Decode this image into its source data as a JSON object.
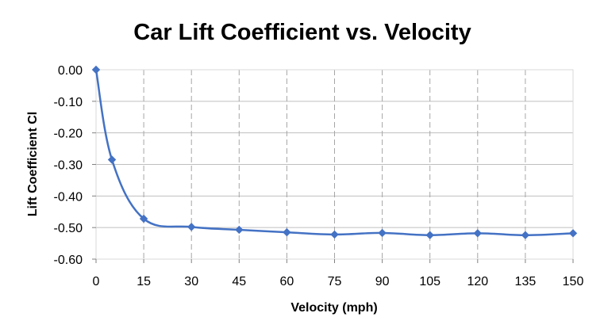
{
  "chart_data": {
    "type": "line",
    "title": "Car Lift Coefficient vs. Velocity",
    "xlabel": "Velocity (mph)",
    "ylabel": "Lift Coefficient Cl",
    "xlim": [
      0,
      150
    ],
    "ylim": [
      -0.6,
      0.0
    ],
    "x_ticks": [
      "0",
      "15",
      "30",
      "45",
      "60",
      "75",
      "90",
      "105",
      "120",
      "135",
      "150"
    ],
    "y_ticks": [
      "0.00",
      "-0.10",
      "-0.20",
      "-0.30",
      "-0.40",
      "-0.50",
      "-0.60"
    ],
    "x_tick_values": [
      0,
      15,
      30,
      45,
      60,
      75,
      90,
      105,
      120,
      135,
      150
    ],
    "y_tick_values": [
      0.0,
      -0.1,
      -0.2,
      -0.3,
      -0.4,
      -0.5,
      -0.6
    ],
    "grid": true,
    "vertical_grid_style": "dashed",
    "smooth": true,
    "marker": "diamond",
    "series": [
      {
        "color": "#4472C4",
        "x": [
          0,
          5,
          15,
          30,
          45,
          60,
          75,
          90,
          105,
          120,
          135,
          150
        ],
        "y": [
          0.0,
          -0.285,
          -0.472,
          -0.498,
          -0.507,
          -0.515,
          -0.522,
          -0.517,
          -0.524,
          -0.518,
          -0.524,
          -0.518
        ]
      }
    ]
  }
}
